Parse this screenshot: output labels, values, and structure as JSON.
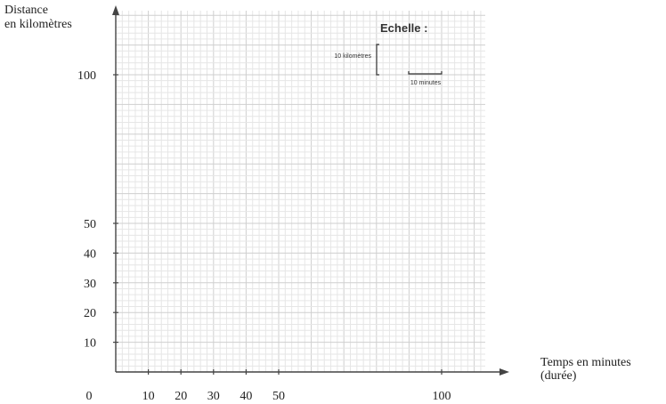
{
  "chart_data": {
    "type": "line",
    "ylabel_line1": "Distance",
    "ylabel_line2": "en kilomètres",
    "xlabel_line1": "Temps en minutes",
    "xlabel_line2": "(durée)",
    "origin_label": "0",
    "x_ticks": [
      10,
      20,
      30,
      40,
      50,
      100
    ],
    "y_ticks": [
      10,
      20,
      30,
      40,
      50,
      100
    ],
    "scale": {
      "title": "Echelle :",
      "vertical_label": "10 kilomètres",
      "horizontal_label": "10 minutes"
    },
    "grid": true,
    "series": []
  }
}
